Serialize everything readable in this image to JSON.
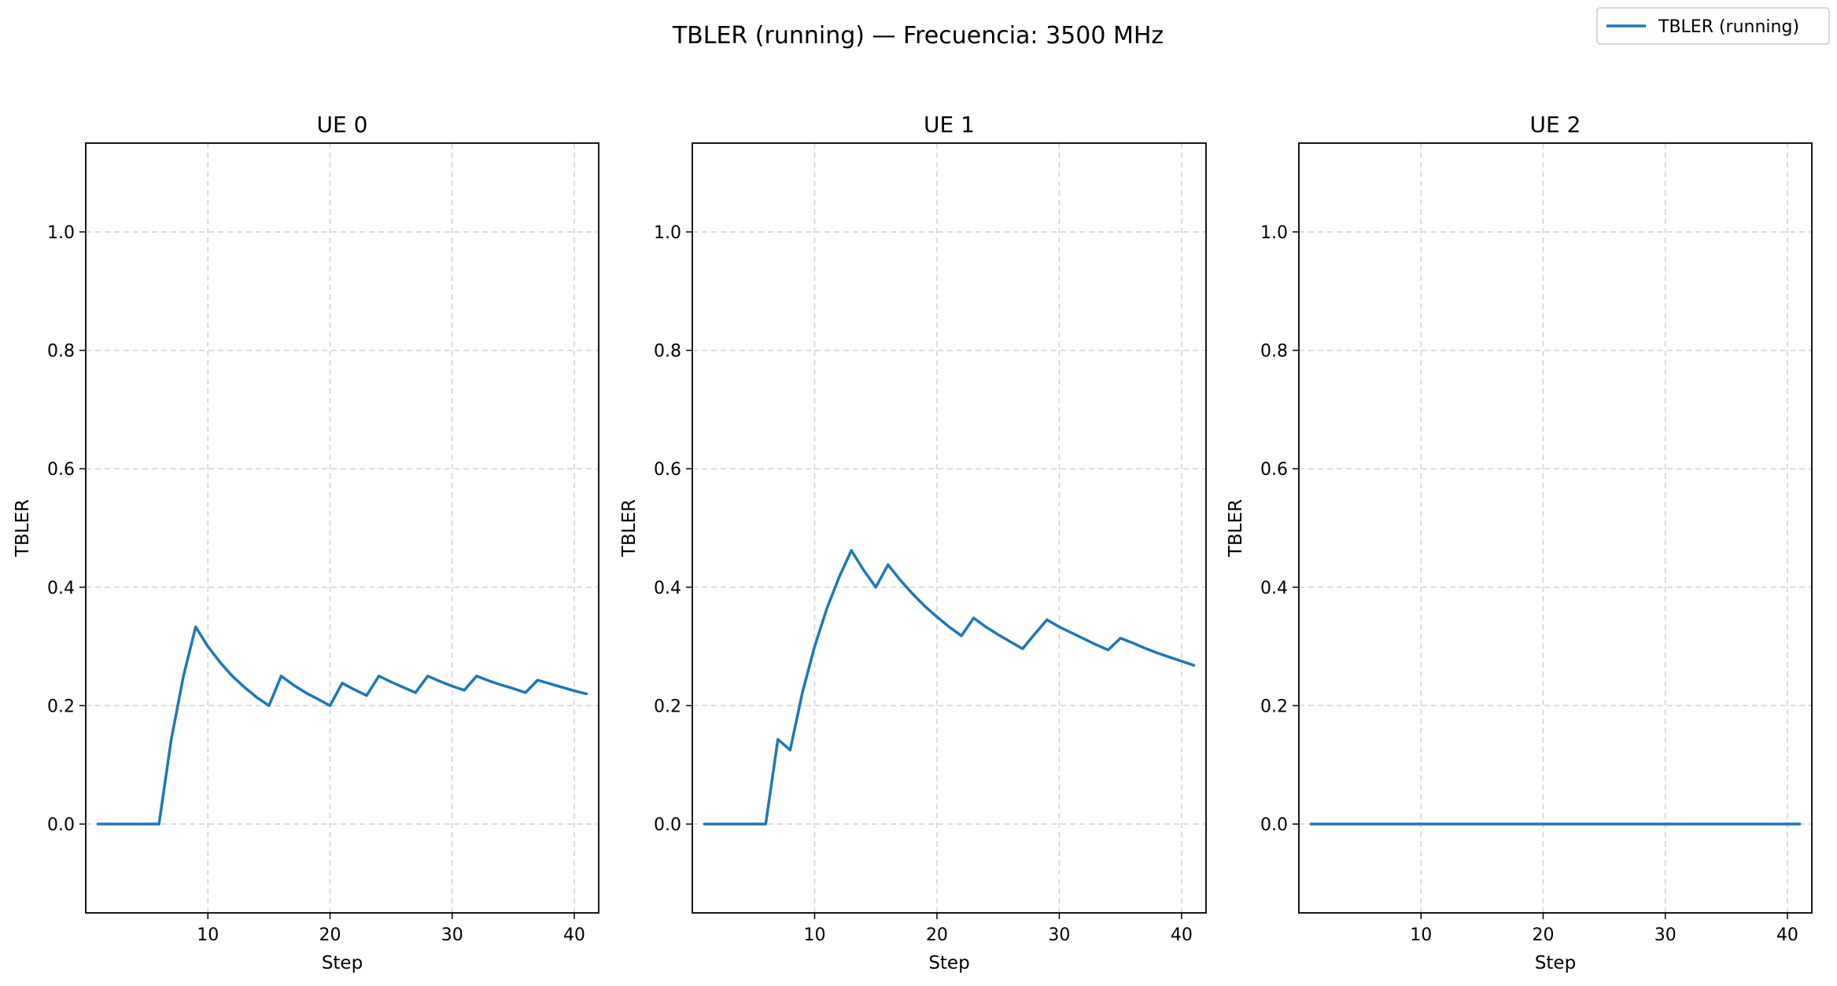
{
  "figure": {
    "title": "TBLER (running) — Frecuencia: 3500 MHz",
    "legend": {
      "entries": [
        "TBLER (running)"
      ],
      "placement": "top-right"
    },
    "colors": {
      "series": "#1f77b4",
      "grid": "#d3d3d3",
      "axes": "#000000"
    }
  },
  "chart_data": [
    {
      "type": "line",
      "title": "UE 0",
      "xlabel": "Step",
      "ylabel": "TBLER",
      "xlim": [
        0.0,
        42.0
      ],
      "ylim": [
        -0.15,
        1.15
      ],
      "xticks": [
        10,
        20,
        30,
        40
      ],
      "yticks": [
        0.0,
        0.2,
        0.4,
        0.6,
        0.8,
        1.0
      ],
      "grid": true,
      "series": [
        {
          "name": "TBLER (running)",
          "x": [
            1,
            2,
            3,
            4,
            5,
            6,
            7,
            8,
            9,
            10,
            11,
            12,
            13,
            14,
            15,
            16,
            17,
            18,
            19,
            20,
            21,
            22,
            23,
            24,
            25,
            26,
            27,
            28,
            29,
            30,
            31,
            32,
            33,
            34,
            35,
            36,
            37,
            38,
            39,
            40,
            41
          ],
          "values": [
            0,
            0,
            0,
            0,
            0,
            0,
            0.143,
            0.25,
            0.333,
            0.3,
            0.273,
            0.25,
            0.231,
            0.214,
            0.2,
            0.25,
            0.235,
            0.222,
            0.211,
            0.2,
            0.238,
            0.227,
            0.217,
            0.25,
            0.24,
            0.231,
            0.222,
            0.25,
            0.241,
            0.233,
            0.226,
            0.25,
            0.242,
            0.235,
            0.229,
            0.222,
            0.243,
            0.237,
            0.231,
            0.225,
            0.22
          ]
        }
      ]
    },
    {
      "type": "line",
      "title": "UE 1",
      "xlabel": "Step",
      "ylabel": "TBLER",
      "xlim": [
        0.0,
        42.0
      ],
      "ylim": [
        -0.15,
        1.15
      ],
      "xticks": [
        10,
        20,
        30,
        40
      ],
      "yticks": [
        0.0,
        0.2,
        0.4,
        0.6,
        0.8,
        1.0
      ],
      "grid": true,
      "series": [
        {
          "name": "TBLER (running)",
          "x": [
            1,
            2,
            3,
            4,
            5,
            6,
            7,
            8,
            9,
            10,
            11,
            12,
            13,
            14,
            15,
            16,
            17,
            18,
            19,
            20,
            21,
            22,
            23,
            24,
            25,
            26,
            27,
            28,
            29,
            30,
            31,
            32,
            33,
            34,
            35,
            36,
            37,
            38,
            39,
            40,
            41
          ],
          "values": [
            0,
            0,
            0,
            0,
            0,
            0,
            0.143,
            0.125,
            0.222,
            0.3,
            0.364,
            0.417,
            0.462,
            0.429,
            0.4,
            0.438,
            0.412,
            0.389,
            0.368,
            0.35,
            0.333,
            0.318,
            0.348,
            0.333,
            0.32,
            0.308,
            0.296,
            0.321,
            0.345,
            0.333,
            0.323,
            0.313,
            0.303,
            0.294,
            0.314,
            0.306,
            0.297,
            0.289,
            0.282,
            0.275,
            0.268
          ]
        }
      ]
    },
    {
      "type": "line",
      "title": "UE 2",
      "xlabel": "Step",
      "ylabel": "TBLER",
      "xlim": [
        0.0,
        42.0
      ],
      "ylim": [
        -0.15,
        1.15
      ],
      "xticks": [
        10,
        20,
        30,
        40
      ],
      "yticks": [
        0.0,
        0.2,
        0.4,
        0.6,
        0.8,
        1.0
      ],
      "grid": true,
      "series": [
        {
          "name": "TBLER (running)",
          "x": [
            1,
            2,
            3,
            4,
            5,
            6,
            7,
            8,
            9,
            10,
            11,
            12,
            13,
            14,
            15,
            16,
            17,
            18,
            19,
            20,
            21,
            22,
            23,
            24,
            25,
            26,
            27,
            28,
            29,
            30,
            31,
            32,
            33,
            34,
            35,
            36,
            37,
            38,
            39,
            40,
            41
          ],
          "values": [
            0,
            0,
            0,
            0,
            0,
            0,
            0,
            0,
            0,
            0,
            0,
            0,
            0,
            0,
            0,
            0,
            0,
            0,
            0,
            0,
            0,
            0,
            0,
            0,
            0,
            0,
            0,
            0,
            0,
            0,
            0,
            0,
            0,
            0,
            0,
            0,
            0,
            0,
            0,
            0,
            0
          ]
        }
      ]
    }
  ]
}
